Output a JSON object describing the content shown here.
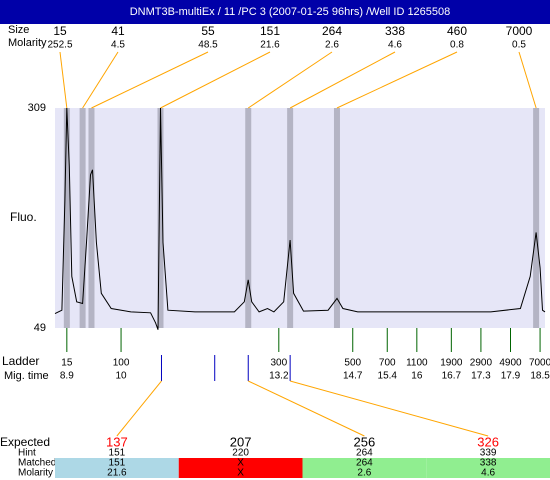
{
  "chart_data": {
    "type": "electropherogram",
    "title": "DNMT3B-multiEx / 11 /PC 3 (2007-01-25 96hrs) /Well ID 1265508",
    "size_label": "Size",
    "molarity_label": "Molarity",
    "peaks": {
      "sizes": [
        15,
        41,
        55,
        151,
        264,
        338,
        460,
        7000
      ],
      "molarities": [
        252.5,
        4.5,
        48.5,
        21.6,
        2.6,
        4.6,
        0.8,
        0.5
      ],
      "times": [
        8.9,
        9.22,
        9.4,
        10.8,
        12.58,
        13.43,
        14.38,
        18.42
      ]
    },
    "y_label": "Fluo.",
    "ylim": [
      49,
      309
    ],
    "yticks": [
      49,
      309
    ],
    "xlim": [
      8.66,
      18.6
    ],
    "trace": {
      "color": "#000000",
      "x": [
        8.66,
        8.8,
        8.86,
        8.9,
        8.95,
        9.0,
        9.1,
        9.22,
        9.3,
        9.38,
        9.42,
        9.5,
        9.6,
        9.8,
        10.2,
        10.6,
        10.7,
        10.75,
        10.8,
        10.85,
        10.95,
        11.5,
        12.3,
        12.5,
        12.58,
        12.65,
        12.8,
        12.97,
        13.1,
        13.3,
        13.43,
        13.5,
        13.7,
        14.2,
        14.38,
        14.5,
        14.8,
        17.5,
        18.1,
        18.3,
        18.42,
        18.5,
        18.55,
        18.6
      ],
      "values": [
        66,
        70,
        200,
        309,
        240,
        110,
        80,
        78,
        150,
        230,
        236,
        150,
        90,
        72,
        68,
        67,
        55,
        47,
        309,
        150,
        70,
        68,
        68,
        80,
        106,
        80,
        68,
        72,
        68,
        80,
        153,
        90,
        69,
        70,
        84,
        72,
        68,
        68,
        72,
        110,
        162,
        120,
        70,
        68
      ]
    },
    "ladder": {
      "label": "Ladder",
      "time_label": "Mig. time",
      "color": "#006400",
      "sizes": [
        15,
        100,
        300,
        500,
        700,
        1100,
        1900,
        2900,
        4900,
        7000
      ],
      "times": [
        8.9,
        10,
        13.2,
        14.7,
        15.4,
        16,
        16.7,
        17.3,
        17.9,
        18.5
      ]
    },
    "expected_times": [
      10.82,
      11.9,
      12.58,
      13.43
    ],
    "table": {
      "row_labels": [
        "Expected",
        "Hint",
        "Matched",
        "Molarity"
      ],
      "expected": [
        137,
        207,
        256,
        326
      ],
      "expected_colors": [
        "#ff0000",
        "#000000",
        "#000000",
        "#ff0000"
      ],
      "hint": [
        151,
        220,
        264,
        339
      ],
      "matched": [
        151,
        "X",
        264,
        338
      ],
      "molarity": [
        21.6,
        "X",
        2.6,
        4.6
      ],
      "match_colors": [
        "#add8e6",
        "#ff0000",
        "#90ee90",
        "#90ee90"
      ]
    }
  }
}
